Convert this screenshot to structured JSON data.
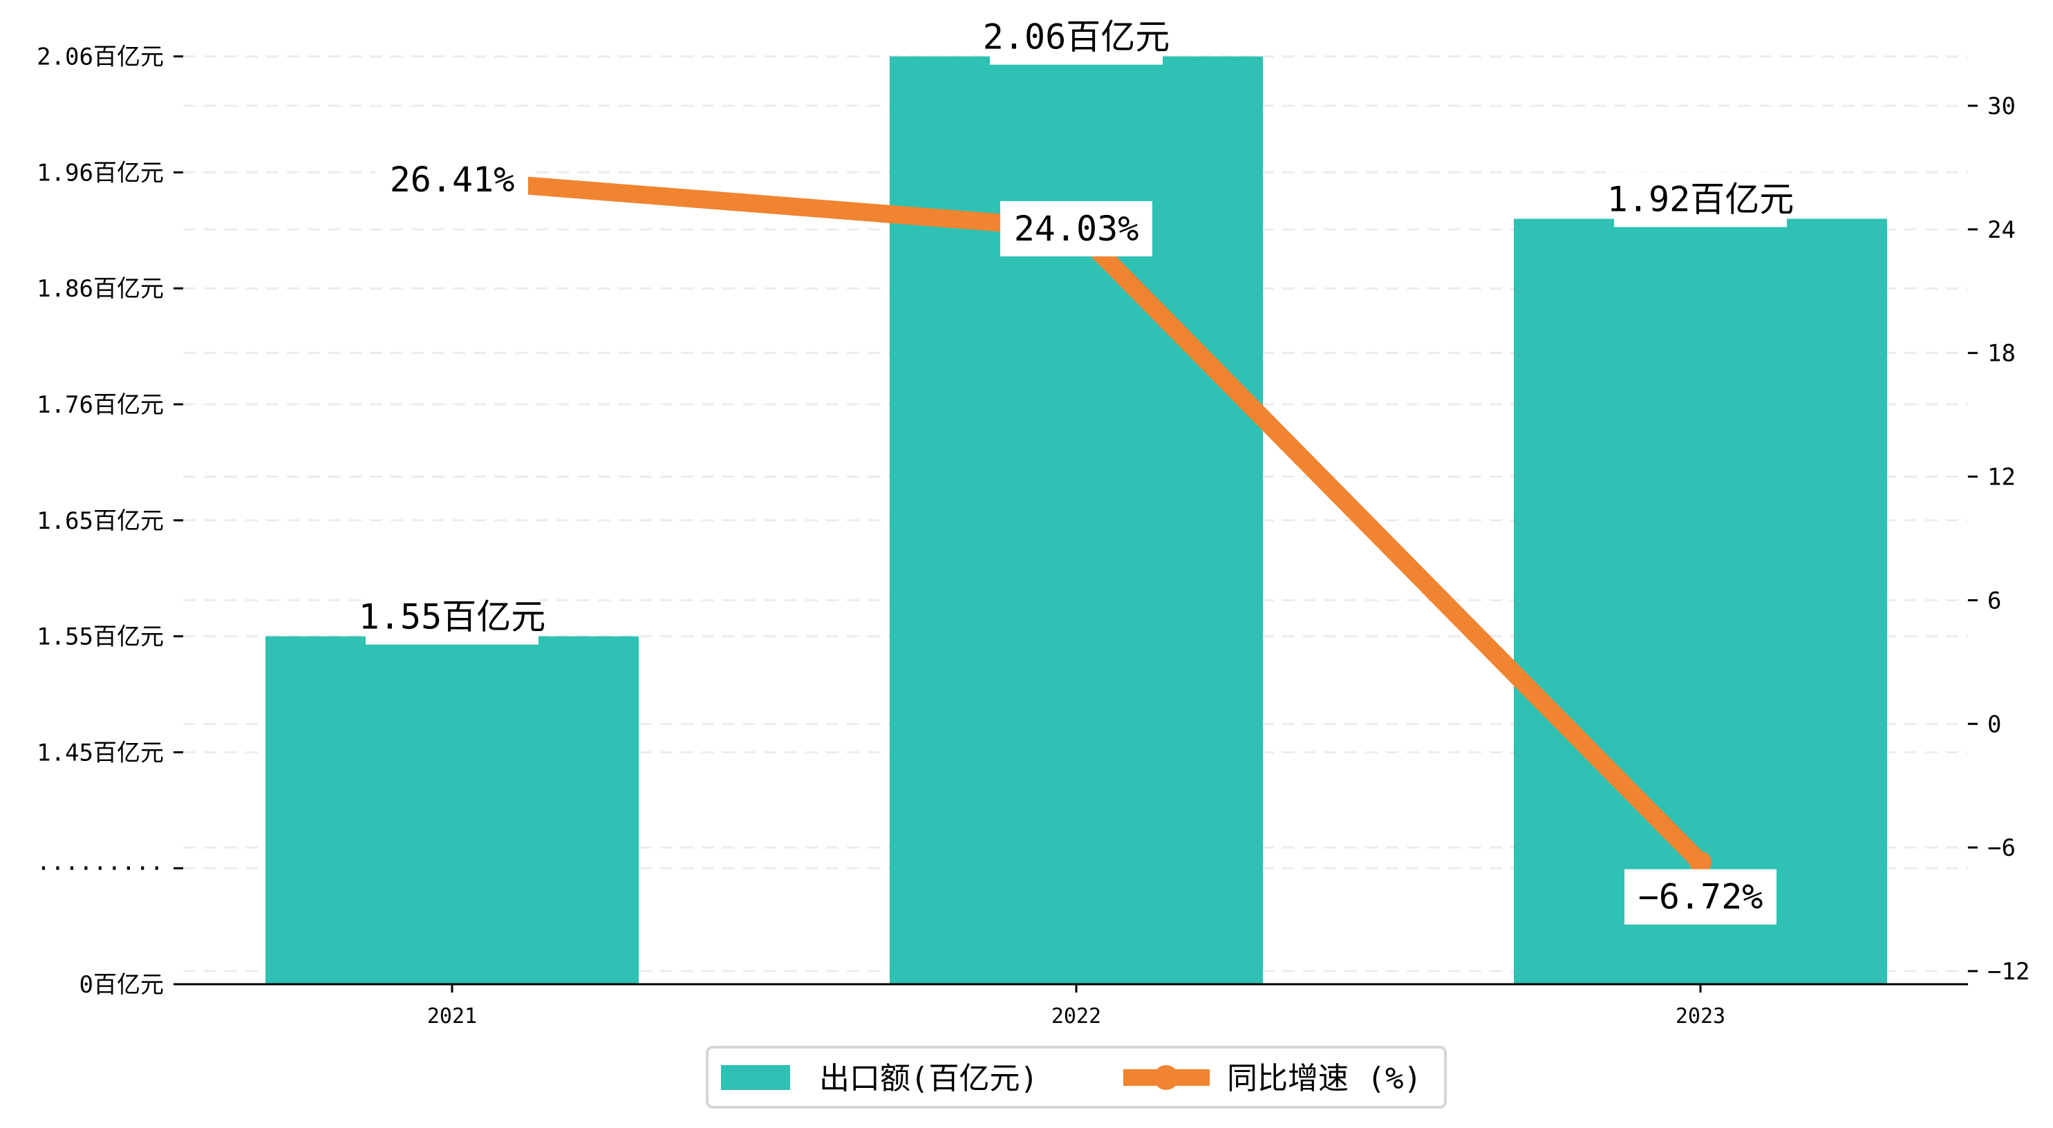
{
  "chart_data": {
    "type": "bar+line",
    "categories": [
      "2021",
      "2022",
      "2023"
    ],
    "series": [
      {
        "name": "出口额(百亿元)",
        "type": "bar",
        "axis": "left",
        "values": [
          1.55,
          2.06,
          1.92
        ],
        "labels": [
          "1.55百亿元",
          "2.06百亿元",
          "1.92百亿元"
        ],
        "color": "#1fbbaa"
      },
      {
        "name": "同比增速 (%)",
        "type": "line",
        "axis": "right",
        "values": [
          26.41,
          24.03,
          -6.72
        ],
        "labels": [
          "26.41%",
          "24.03%",
          "-6.72%"
        ],
        "color": "#f08431"
      }
    ],
    "left_axis": {
      "ticks": [
        "0百亿元",
        "·········",
        "1.45百亿元",
        "1.55百亿元",
        "1.65百亿元",
        "1.76百亿元",
        "1.86百亿元",
        "1.96百亿元",
        "2.06百亿元"
      ],
      "tick_values": [
        0,
        null,
        1.45,
        1.55,
        1.65,
        1.76,
        1.86,
        1.96,
        2.06
      ],
      "broken": true
    },
    "right_axis": {
      "ticks": [
        "-12",
        "-6",
        "0",
        "6",
        "12",
        "18",
        "24",
        "30"
      ],
      "ylim": [
        -12,
        30
      ]
    },
    "grid": true,
    "legend": {
      "placement": "bottom-center",
      "entries": [
        "出口额(百亿元)",
        "同比增速 (%)"
      ]
    }
  }
}
